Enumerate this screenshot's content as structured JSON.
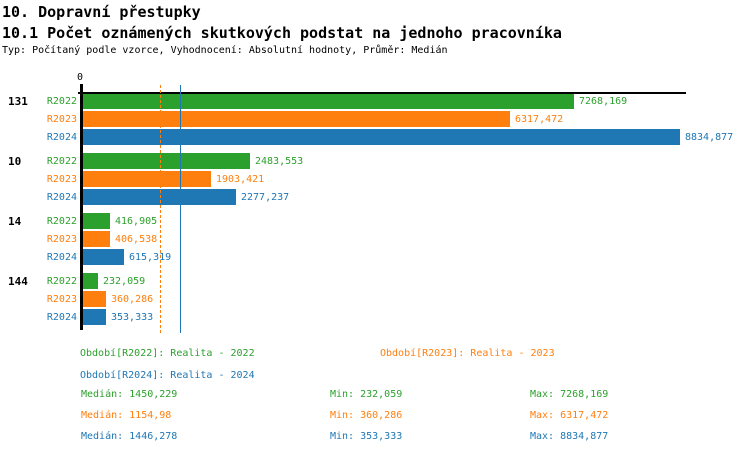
{
  "header": {
    "title": "10. Dopravní přestupky",
    "subtitle": "10.1 Počet oznámených skutkových podstat na jednoho pracovníka",
    "meta": "Typ: Počítaný podle vzorce, Vyhodnocení: Absolutní hodnoty, Průměr: Medián"
  },
  "colors": {
    "r2022": "#2ca02c",
    "r2023": "#ff7f0e",
    "r2024": "#1f77b4",
    "axis": "#000000"
  },
  "chart_data": {
    "type": "bar",
    "orientation": "horizontal",
    "origin_label": "0",
    "xlim": [
      0,
      8900
    ],
    "grid": false,
    "series_names": [
      "R2022",
      "R2023",
      "R2024"
    ],
    "categories": [
      "131",
      "10",
      "14",
      "144"
    ],
    "groups": [
      {
        "category": "131",
        "bars": [
          {
            "series": "R2022",
            "color_key": "r2022",
            "value": 7268.169,
            "label": "7268,169"
          },
          {
            "series": "R2023",
            "color_key": "r2023",
            "value": 6317.472,
            "label": "6317,472"
          },
          {
            "series": "R2024",
            "color_key": "r2024",
            "value": 8834.877,
            "label": "8834,877"
          }
        ]
      },
      {
        "category": "10",
        "bars": [
          {
            "series": "R2022",
            "color_key": "r2022",
            "value": 2483.553,
            "label": "2483,553"
          },
          {
            "series": "R2023",
            "color_key": "r2023",
            "value": 1903.421,
            "label": "1903,421"
          },
          {
            "series": "R2024",
            "color_key": "r2024",
            "value": 2277.237,
            "label": "2277,237"
          }
        ]
      },
      {
        "category": "14",
        "bars": [
          {
            "series": "R2022",
            "color_key": "r2022",
            "value": 416.905,
            "label": "416,905"
          },
          {
            "series": "R2023",
            "color_key": "r2023",
            "value": 406.538,
            "label": "406,538"
          },
          {
            "series": "R2024",
            "color_key": "r2024",
            "value": 615.319,
            "label": "615,319"
          }
        ]
      },
      {
        "category": "144",
        "bars": [
          {
            "series": "R2022",
            "color_key": "r2022",
            "value": 232.059,
            "label": "232,059"
          },
          {
            "series": "R2023",
            "color_key": "r2023",
            "value": 360.286,
            "label": "360,286"
          },
          {
            "series": "R2024",
            "color_key": "r2024",
            "value": 353.333,
            "label": "353,333"
          }
        ]
      }
    ],
    "medians": [
      {
        "series": "R2022",
        "color_key": "r2022",
        "value": 1450.229,
        "style": "solid"
      },
      {
        "series": "R2023",
        "color_key": "r2023",
        "value": 1154.98,
        "style": "dashed"
      },
      {
        "series": "R2024",
        "color_key": "r2024",
        "value": 1446.278,
        "style": "solid"
      }
    ]
  },
  "legend": [
    {
      "text": "Období[R2022]: Realita - 2022",
      "color_key": "r2022"
    },
    {
      "text": "Období[R2023]: Realita - 2023",
      "color_key": "r2023"
    },
    {
      "text": "Období[R2024]: Realita - 2024",
      "color_key": "r2024"
    }
  ],
  "stats": [
    {
      "color_key": "r2022",
      "median": "Medián: 1450,229",
      "min": "Min: 232,059",
      "max": "Max: 7268,169"
    },
    {
      "color_key": "r2023",
      "median": "Medián: 1154,98",
      "min": "Min: 360,286",
      "max": "Max: 6317,472"
    },
    {
      "color_key": "r2024",
      "median": "Medián: 1446,278",
      "min": "Min: 353,333",
      "max": "Max: 8834,877"
    }
  ]
}
